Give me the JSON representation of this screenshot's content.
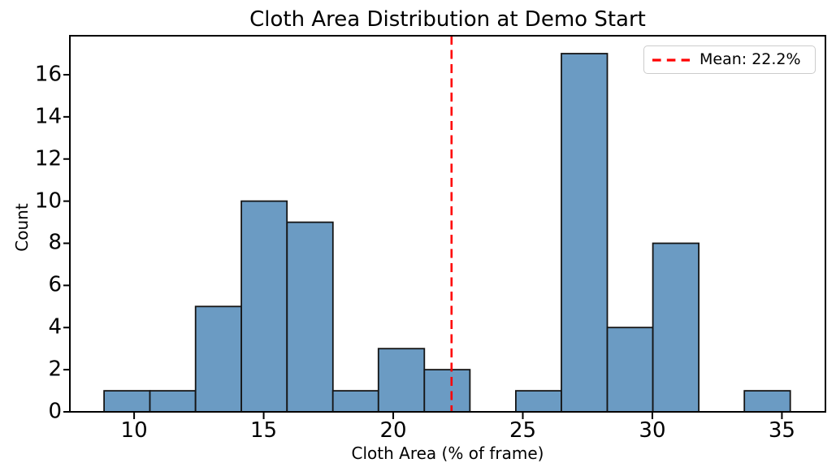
{
  "chart_data": {
    "type": "bar",
    "subtype": "histogram",
    "title": "Cloth Area Distribution at Demo Start",
    "xlabel": "Cloth Area (% of frame)",
    "ylabel": "Count",
    "bin_edges": [
      8.84,
      10.61,
      12.37,
      14.14,
      15.9,
      17.67,
      19.43,
      21.2,
      22.96,
      24.73,
      26.49,
      28.26,
      30.02,
      31.79,
      33.55,
      35.32
    ],
    "counts": [
      1,
      1,
      5,
      10,
      9,
      1,
      3,
      2,
      0,
      1,
      17,
      4,
      8,
      0,
      1
    ],
    "mean_value": 22.25,
    "xticks": [
      "10",
      "15",
      "20",
      "25",
      "30",
      "35"
    ],
    "xtick_values": [
      10,
      15,
      20,
      25,
      30,
      35
    ],
    "yticks": [
      "0",
      "2",
      "4",
      "6",
      "8",
      "10",
      "12",
      "14",
      "16"
    ],
    "ytick_values": [
      0,
      2,
      4,
      6,
      8,
      10,
      12,
      14,
      16
    ],
    "xlim": [
      7.52,
      36.68
    ],
    "ylim": [
      0,
      17.85
    ],
    "grid": false,
    "legend": {
      "label": "Mean: 22.2%",
      "position": "upper right",
      "line_style": "dashed"
    },
    "colors": {
      "bar_fill": "#6B9BC3",
      "bar_edge": "#151515",
      "mean_line": "#FF0000",
      "axis": "#000000",
      "legend_border": "#cccccc",
      "background": "#ffffff"
    }
  }
}
